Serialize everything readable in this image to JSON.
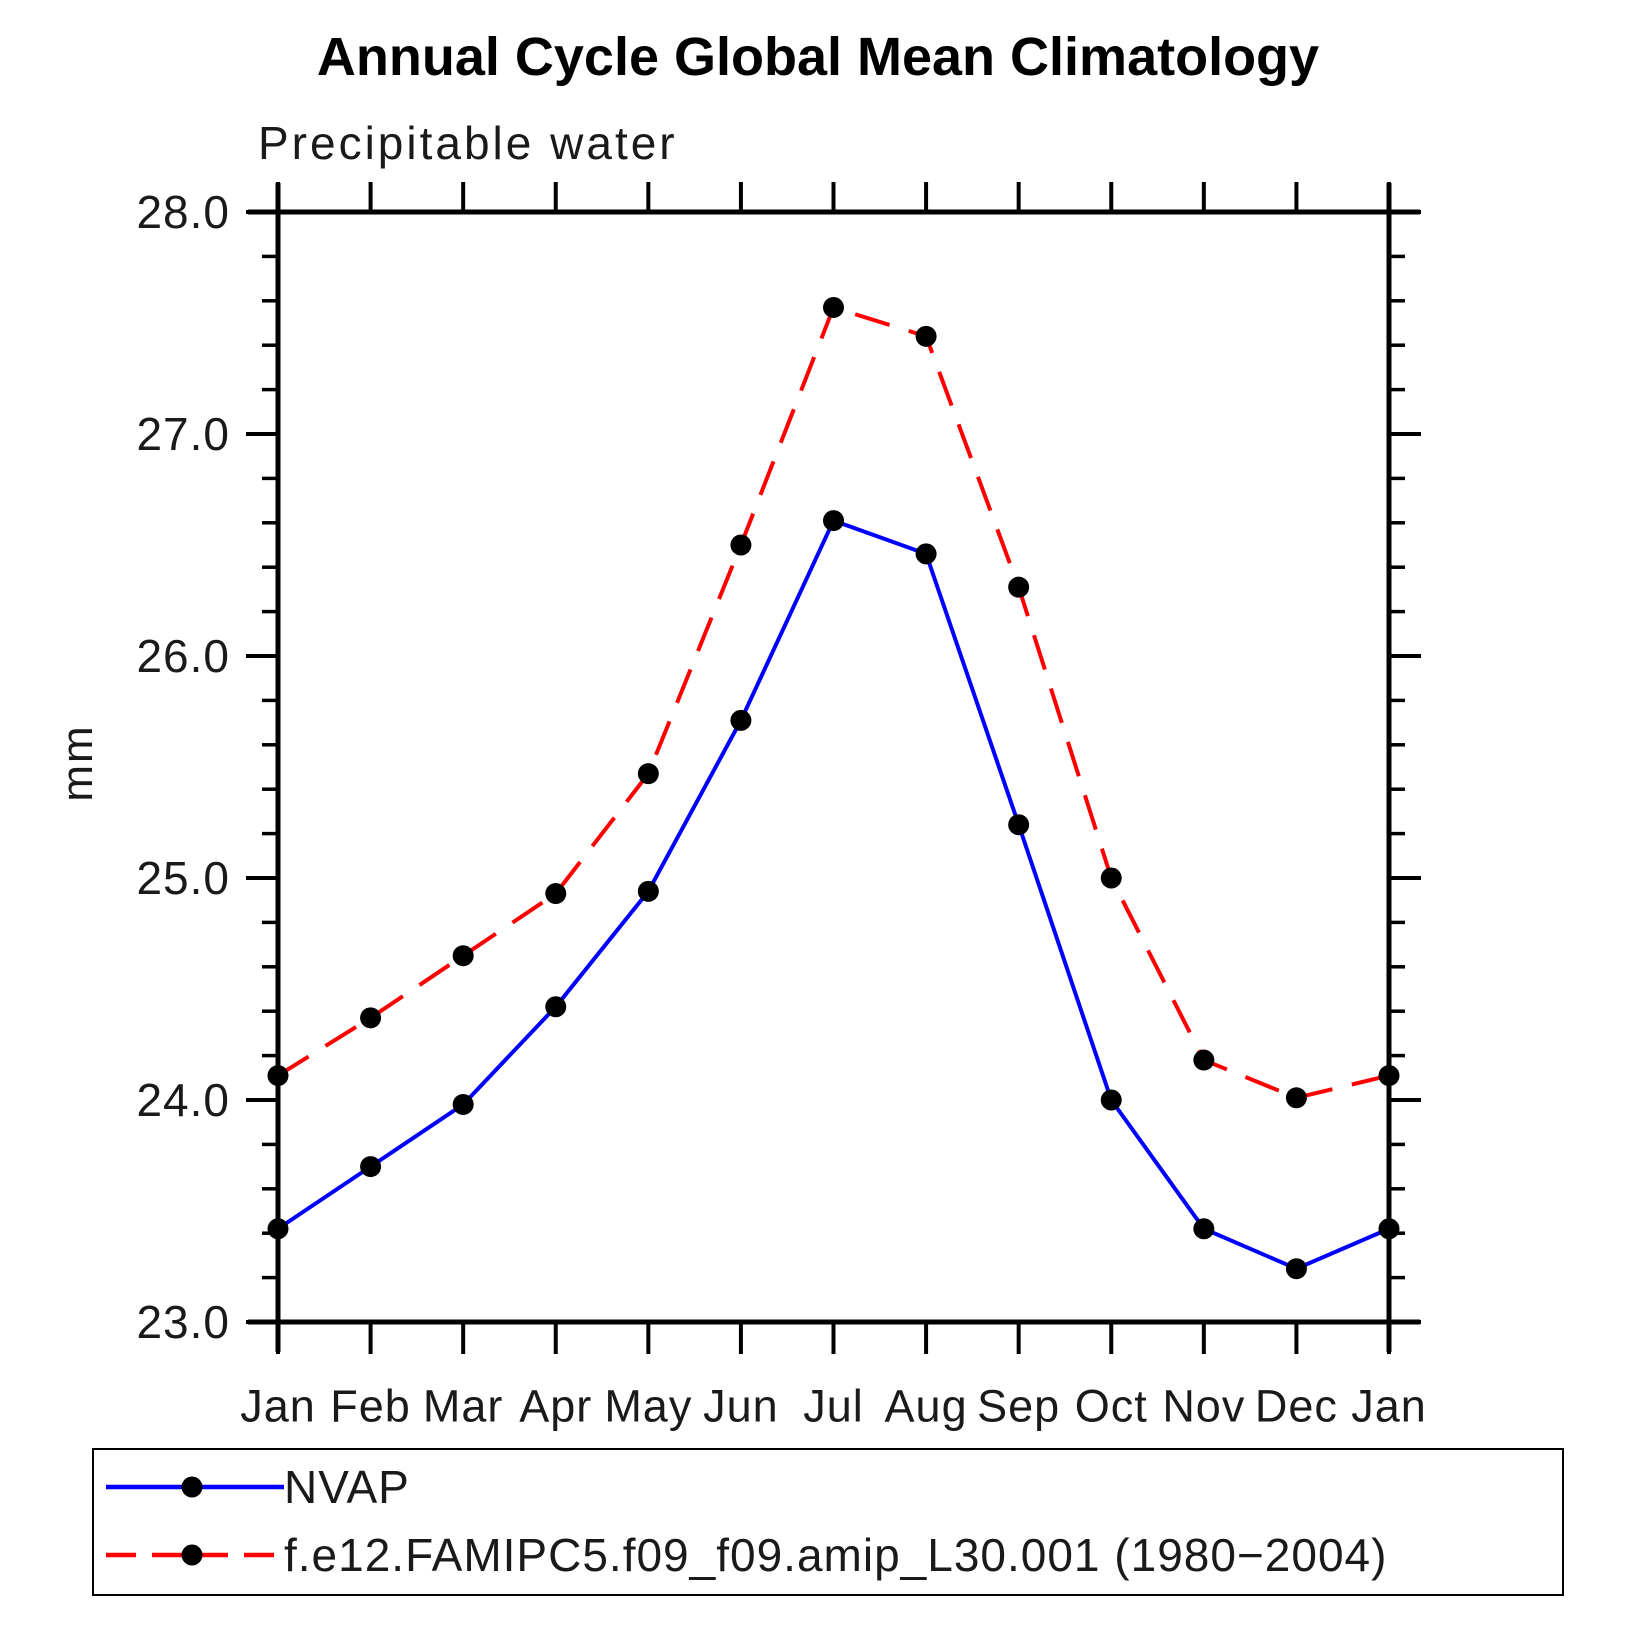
{
  "title": "Annual Cycle Global Mean Climatology",
  "subtitle": "Precipitable water",
  "chart_data": {
    "type": "line",
    "title": "Annual Cycle Global Mean Climatology",
    "subtitle": "Precipitable water",
    "xlabel": "",
    "ylabel": "mm",
    "categories": [
      "Jan",
      "Feb",
      "Mar",
      "Apr",
      "May",
      "Jun",
      "Jul",
      "Aug",
      "Sep",
      "Oct",
      "Nov",
      "Dec",
      "Jan"
    ],
    "series": [
      {
        "name": "NVAP",
        "color": "#0000ff",
        "style": "solid",
        "marker": "filled-circle",
        "marker_color": "#000000",
        "values": [
          23.42,
          23.7,
          23.98,
          24.42,
          24.94,
          25.71,
          26.61,
          26.46,
          25.24,
          24.0,
          23.42,
          23.24,
          23.42
        ]
      },
      {
        "name": "f.e12.FAMIPC5.f09_f09.amip_L30.001 (1980−2004)",
        "color": "#ff0000",
        "style": "dashed",
        "marker": "filled-circle",
        "marker_color": "#000000",
        "values": [
          24.11,
          24.37,
          24.65,
          24.93,
          25.47,
          26.5,
          27.57,
          27.44,
          26.31,
          25.0,
          24.18,
          24.01,
          24.11
        ]
      }
    ],
    "ylim": [
      23.0,
      28.0
    ],
    "yticks": [
      23.0,
      24.0,
      25.0,
      26.0,
      27.0,
      28.0
    ],
    "ytick_labels": [
      "23.0",
      "24.0",
      "25.0",
      "26.0",
      "27.0",
      "28.0"
    ],
    "y_minor_step": 0.2,
    "grid": "off",
    "legend_position": "bottom",
    "axis_color": "#000000"
  }
}
